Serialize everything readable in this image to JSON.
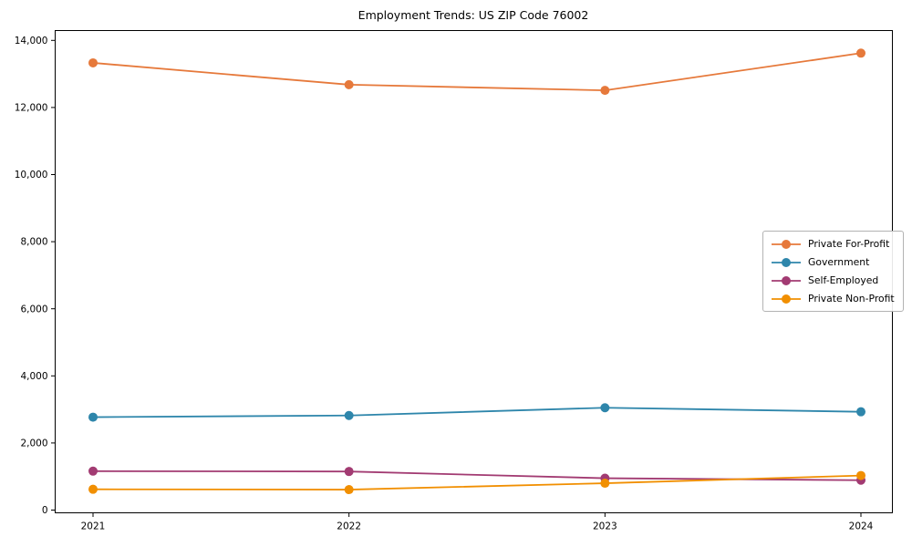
{
  "chart_data": {
    "type": "line",
    "title": "Employment Trends: US ZIP Code 76002",
    "x": [
      "2021",
      "2022",
      "2023",
      "2024"
    ],
    "series": [
      {
        "name": "Private For-Profit",
        "color": "#e6793b",
        "values": [
          13330,
          12680,
          12510,
          13620
        ]
      },
      {
        "name": "Government",
        "color": "#2e86ab",
        "values": [
          2770,
          2820,
          3050,
          2930
        ]
      },
      {
        "name": "Self-Employed",
        "color": "#a23b72",
        "values": [
          1160,
          1150,
          950,
          890
        ]
      },
      {
        "name": "Private Non-Profit",
        "color": "#f18f01",
        "values": [
          620,
          610,
          800,
          1030
        ]
      }
    ],
    "xlabel": "",
    "ylabel": "",
    "ylim": [
      0,
      14300
    ],
    "y_ticks": [
      {
        "value": 0,
        "label": "0"
      },
      {
        "value": 2000,
        "label": "2,000"
      },
      {
        "value": 4000,
        "label": "4,000"
      },
      {
        "value": 6000,
        "label": "6,000"
      },
      {
        "value": 8000,
        "label": "8,000"
      },
      {
        "value": 10000,
        "label": "10,000"
      },
      {
        "value": 12000,
        "label": "12,000"
      },
      {
        "value": 14000,
        "label": "14,000"
      }
    ],
    "grid": false,
    "legend_position": "center-right",
    "marker": "circle",
    "axis_color": "#000000"
  }
}
